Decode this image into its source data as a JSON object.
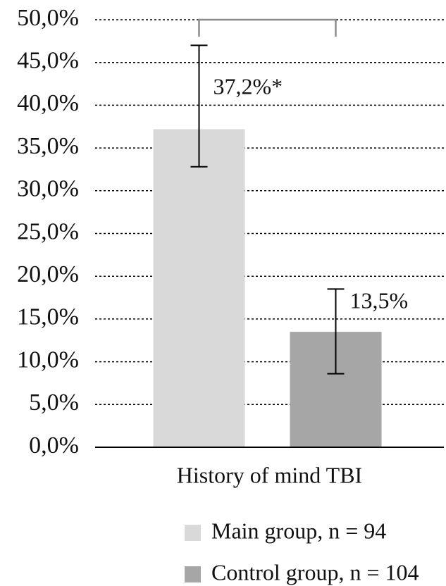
{
  "chart_data": {
    "type": "bar",
    "categories": [
      "History of mind TBI"
    ],
    "series": [
      {
        "name": "Main group, n = 94",
        "color": "#d9d9d9",
        "values": [
          37.2
        ],
        "value_labels": [
          "37,2%*"
        ],
        "ci": [
          [
            32.8,
            47.0
          ]
        ]
      },
      {
        "name": "Control group, n = 104",
        "color": "#a6a6a6",
        "values": [
          13.5
        ],
        "value_labels": [
          "13,5%"
        ],
        "ci": [
          [
            8.6,
            18.5
          ]
        ]
      }
    ],
    "ylim": [
      0,
      50
    ],
    "yticks": [
      {
        "value": 0,
        "label": "0,0%"
      },
      {
        "value": 5,
        "label": "5,0%"
      },
      {
        "value": 10,
        "label": "10,0%"
      },
      {
        "value": 15,
        "label": "15,0%"
      },
      {
        "value": 20,
        "label": "20,0%"
      },
      {
        "value": 25,
        "label": "25,0%"
      },
      {
        "value": 30,
        "label": "30,0%"
      },
      {
        "value": 35,
        "label": "35,0%"
      },
      {
        "value": 40,
        "label": "40,0%"
      },
      {
        "value": 45,
        "label": "45,0%"
      },
      {
        "value": 50,
        "label": "50,0%"
      }
    ],
    "grid": true,
    "legend": "bottom"
  }
}
